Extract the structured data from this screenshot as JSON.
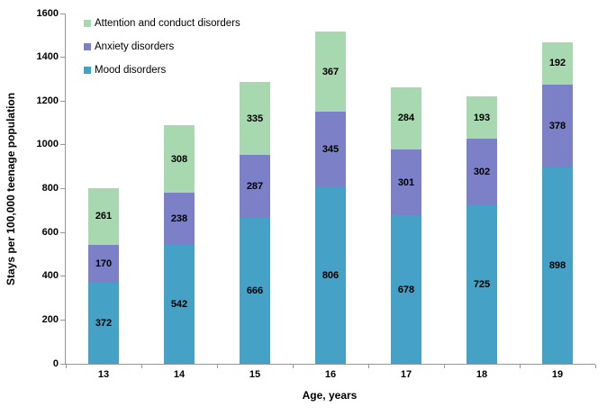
{
  "chart_data": {
    "type": "bar",
    "stacked": true,
    "title": "",
    "xlabel": "Age, years",
    "ylabel": "Stays per 100,000 teenage population",
    "ylim": [
      0,
      1600
    ],
    "yticks": [
      0,
      200,
      400,
      600,
      800,
      1000,
      1200,
      1400,
      1600
    ],
    "grid": false,
    "legend_position": "top-left-inside",
    "legend_order": [
      "Attention and conduct disorders",
      "Anxiety disorders",
      "Mood disorders"
    ],
    "categories": [
      "13",
      "14",
      "15",
      "16",
      "17",
      "18",
      "19"
    ],
    "series": [
      {
        "name": "Mood disorders",
        "color": "#45a2c6",
        "values": [
          372,
          542,
          666,
          806,
          678,
          725,
          898
        ]
      },
      {
        "name": "Anxiety disorders",
        "color": "#7b80c7",
        "values": [
          170,
          238,
          287,
          345,
          301,
          302,
          378
        ]
      },
      {
        "name": "Attention and conduct disorders",
        "color": "#a7d8af",
        "values": [
          261,
          308,
          335,
          367,
          284,
          193,
          192
        ]
      }
    ],
    "colors": {
      "axis": "#969696",
      "label_text": "#000000",
      "background": "#ffffff"
    }
  }
}
